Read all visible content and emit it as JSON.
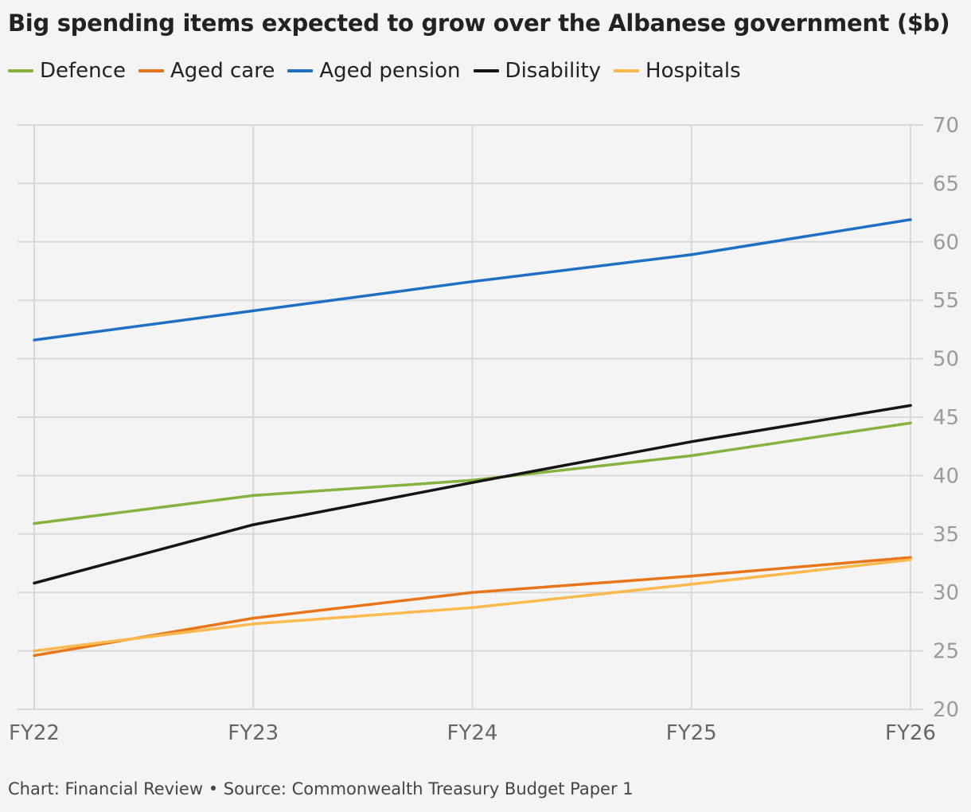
{
  "title": "Big spending items expected to grow over the Albanese government ($b)",
  "footer": "Chart: Financial Review • Source: Commonwealth Treasury Budget Paper 1",
  "colors": {
    "defence": "#86b23f",
    "aged_care": "#e8751a",
    "aged_pension": "#1f6fc5",
    "disability": "#151515",
    "hospitals": "#fcb94d"
  },
  "chart_data": {
    "type": "line",
    "categories": [
      "FY22",
      "FY23",
      "FY24",
      "FY25",
      "FY26"
    ],
    "series": [
      {
        "name": "Defence",
        "color": "#86b23f",
        "values": [
          35.9,
          38.3,
          39.6,
          41.7,
          44.5
        ]
      },
      {
        "name": "Aged care",
        "color": "#e8751a",
        "values": [
          24.6,
          27.8,
          30.0,
          31.4,
          33.0
        ]
      },
      {
        "name": "Aged pension",
        "color": "#1f6fc5",
        "values": [
          51.6,
          54.1,
          56.6,
          58.9,
          61.9
        ]
      },
      {
        "name": "Disability",
        "color": "#151515",
        "values": [
          30.8,
          35.8,
          39.4,
          42.9,
          46.0
        ]
      },
      {
        "name": "Hospitals",
        "color": "#fcb94d",
        "values": [
          25.0,
          27.3,
          28.7,
          30.7,
          32.8
        ]
      }
    ],
    "y_ticks": [
      "20",
      "25",
      "30",
      "35",
      "40",
      "45",
      "50",
      "55",
      "60",
      "65",
      "70"
    ],
    "ylim": [
      20,
      70
    ],
    "y_axis_side": "right",
    "grid": true,
    "legend_position": "top-left"
  }
}
